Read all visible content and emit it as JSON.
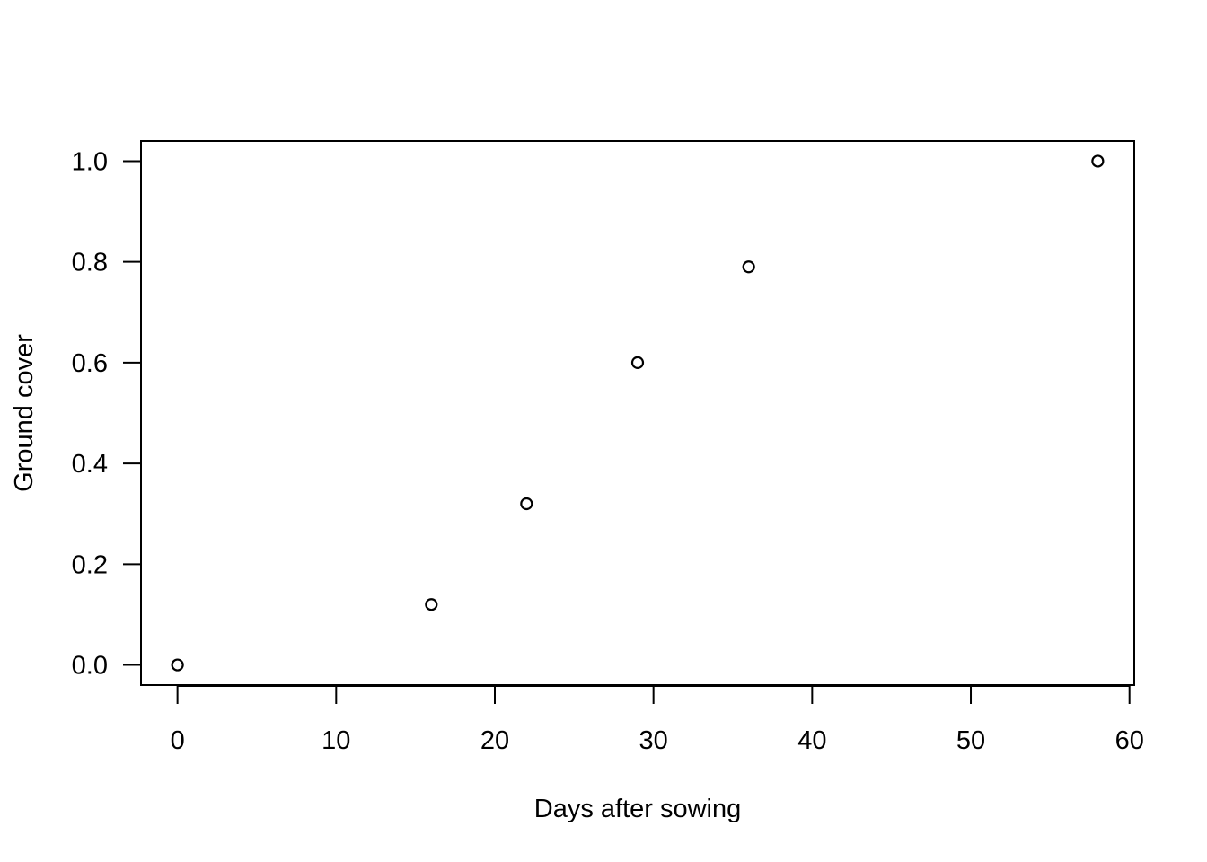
{
  "chart_data": {
    "type": "scatter",
    "title": "",
    "xlabel": "Days after sowing",
    "ylabel": "Ground cover",
    "xlim": [
      -2.3,
      60.3
    ],
    "ylim": [
      -0.04,
      1.04
    ],
    "x_ticks": [
      0,
      10,
      20,
      30,
      40,
      50,
      60
    ],
    "x_tick_labels": [
      "0",
      "10",
      "20",
      "30",
      "40",
      "50",
      "60"
    ],
    "y_ticks": [
      0.0,
      0.2,
      0.4,
      0.6,
      0.8,
      1.0
    ],
    "y_tick_labels": [
      "0.0",
      "0.2",
      "0.4",
      "0.6",
      "0.8",
      "1.0"
    ],
    "grid": false,
    "marker": "open-circle",
    "marker_color": "#000000",
    "series": [
      {
        "x": [
          0,
          16,
          22,
          29,
          36,
          58
        ],
        "y": [
          0.0,
          0.12,
          0.32,
          0.6,
          0.79,
          1.0
        ]
      }
    ]
  }
}
